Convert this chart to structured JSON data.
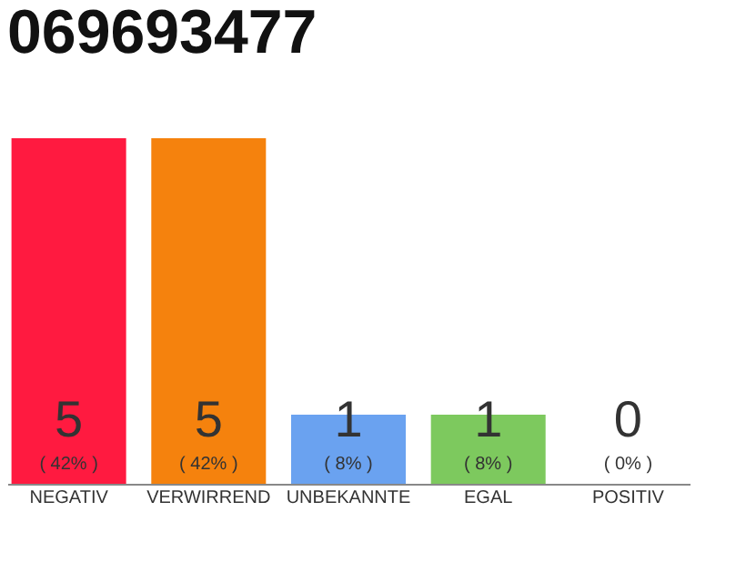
{
  "chart_data": {
    "type": "bar",
    "title": "069693477",
    "categories": [
      "NEGATIV",
      "VERWIRREND",
      "UNBEKANNTE",
      "EGAL",
      "POSITIV"
    ],
    "values": [
      5,
      5,
      1,
      1,
      0
    ],
    "colors": [
      "#ff1a40",
      "#f5820d",
      "#6aa2f0",
      "#7dc95e",
      "#e0e0e0"
    ],
    "data_labels": true,
    "annotations": [
      {
        "text": "( 42% )",
        "x": "NEGATIV",
        "y": 0
      },
      {
        "text": "( 42% )",
        "x": "VERWIRREND",
        "y": 0
      },
      {
        "text": "( 8% )",
        "x": "UNBEKANNTE",
        "y": 0
      },
      {
        "text": "( 8% )",
        "x": "EGAL",
        "y": 0
      },
      {
        "text": "( 0% )",
        "x": "POSITIV",
        "y": 0
      }
    ],
    "grid": false
  }
}
